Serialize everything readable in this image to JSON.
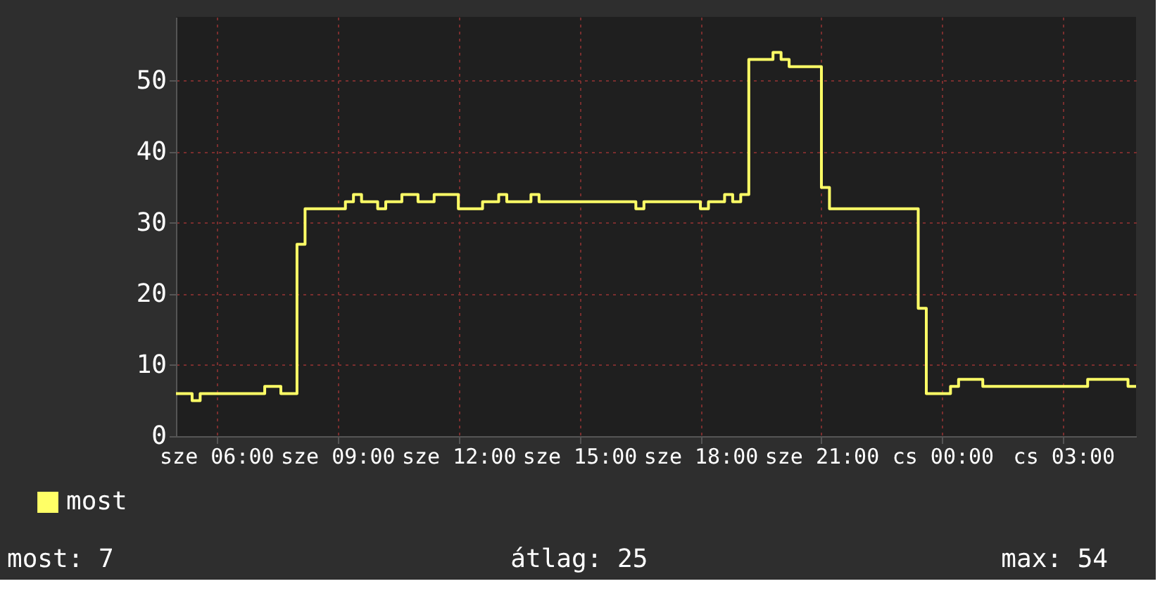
{
  "chart_data": {
    "type": "step",
    "categories": [
      null,
      null,
      null,
      null,
      null,
      "sze 06:00",
      null,
      null,
      null,
      null,
      null,
      null,
      null,
      null,
      null,
      null,
      null,
      null,
      null,
      null,
      "sze 09:00",
      null,
      null,
      null,
      null,
      null,
      null,
      null,
      null,
      null,
      null,
      null,
      null,
      null,
      null,
      "sze 12:00",
      null,
      null,
      null,
      null,
      null,
      null,
      null,
      null,
      null,
      null,
      null,
      null,
      null,
      null,
      "sze 15:00",
      null,
      null,
      null,
      null,
      null,
      null,
      null,
      null,
      null,
      null,
      null,
      null,
      null,
      null,
      "sze 18:00",
      null,
      null,
      null,
      null,
      null,
      null,
      null,
      null,
      null,
      null,
      null,
      null,
      null,
      null,
      "sze 21:00",
      null,
      null,
      null,
      null,
      null,
      null,
      null,
      null,
      null,
      null,
      null,
      null,
      null,
      null,
      "cs 00:00",
      null,
      null,
      null,
      null,
      null,
      null,
      null,
      null,
      null,
      null,
      null,
      null,
      null,
      null,
      "cs 03:00",
      null,
      null,
      null,
      null,
      null,
      null,
      null,
      null,
      null
    ],
    "ylim": [
      0,
      59
    ],
    "yticks": [
      0,
      10,
      20,
      30,
      40,
      50
    ],
    "grid": true,
    "legend": "bottom left",
    "annotations": [
      "most: 7",
      "átlag: 25",
      "max: 54"
    ],
    "series": [
      {
        "name": "most",
        "color": "#ffff66",
        "values": [
          6,
          6,
          5,
          6,
          6,
          6,
          6,
          6,
          6,
          6,
          6,
          7,
          7,
          6,
          6,
          27,
          32,
          32,
          32,
          32,
          32,
          33,
          34,
          33,
          33,
          32,
          33,
          33,
          34,
          34,
          33,
          33,
          34,
          34,
          34,
          32,
          32,
          32,
          33,
          33,
          34,
          33,
          33,
          33,
          34,
          33,
          33,
          33,
          33,
          33,
          33,
          33,
          33,
          33,
          33,
          33,
          33,
          32,
          33,
          33,
          33,
          33,
          33,
          33,
          33,
          32,
          33,
          33,
          34,
          33,
          34,
          53,
          53,
          53,
          54,
          53,
          52,
          52,
          52,
          52,
          35,
          32,
          32,
          32,
          32,
          32,
          32,
          32,
          32,
          32,
          32,
          32,
          18,
          6,
          6,
          6,
          7,
          8,
          8,
          8,
          7,
          7,
          7,
          7,
          7,
          7,
          7,
          7,
          7,
          7,
          7,
          7,
          7,
          8,
          8,
          8,
          8,
          8,
          7,
          7
        ]
      }
    ]
  }
}
